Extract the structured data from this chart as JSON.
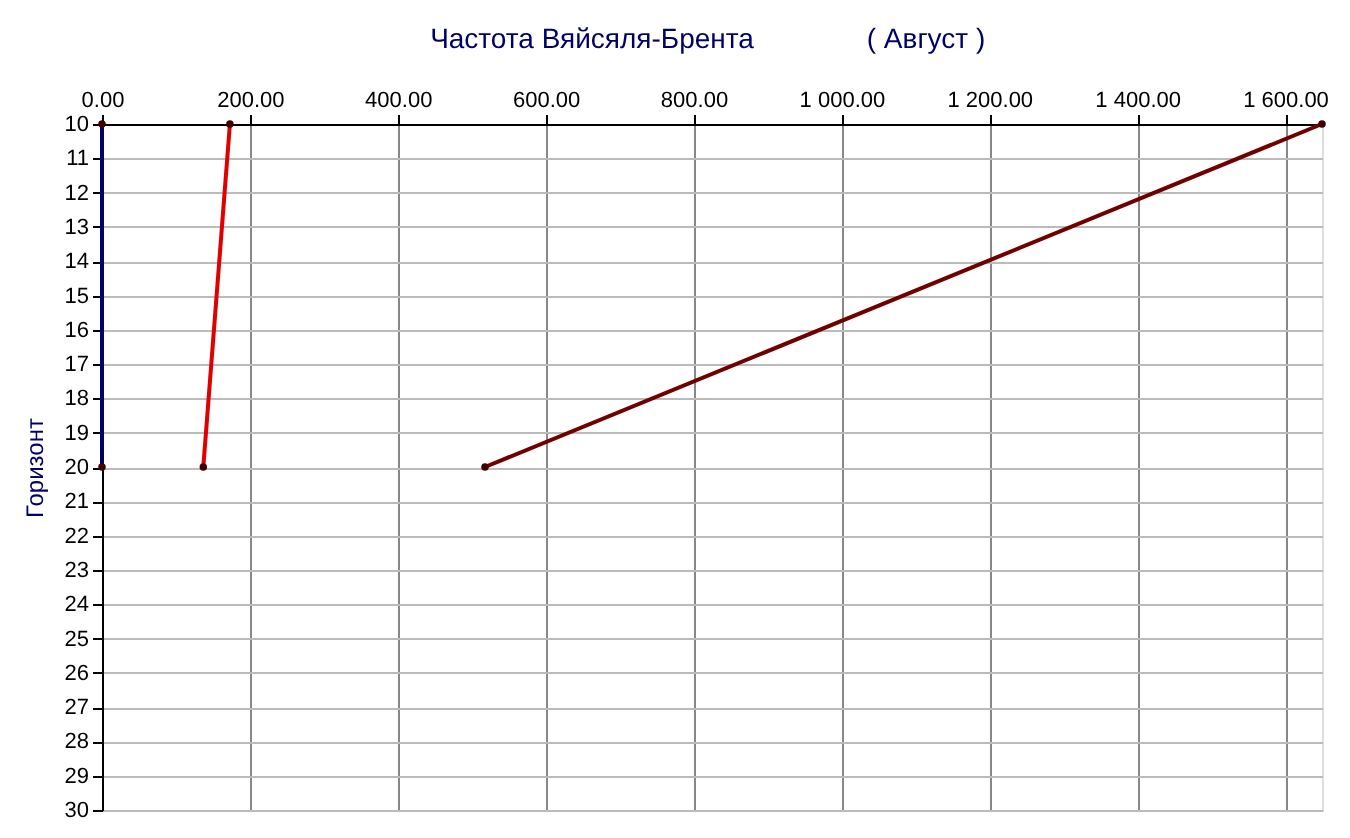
{
  "chart_data": {
    "type": "line",
    "title": "Частота Вяйсяля-Брента",
    "annotations": [
      "( Август )"
    ],
    "ylabel": "Горизонт",
    "series": [
      {
        "color": "#000066",
        "x": [
          0,
          0
        ],
        "values": [
          10,
          20
        ]
      },
      {
        "color": "#e00000",
        "x": [
          173,
          137
        ],
        "values": [
          10,
          20
        ]
      },
      {
        "color": "#700000",
        "x": [
          1650,
          518
        ],
        "values": [
          10,
          20
        ]
      }
    ],
    "xlim": [
      0,
      1650
    ],
    "xticks": [
      {
        "value": 0,
        "label": "0.00"
      },
      {
        "value": 200,
        "label": "200.00"
      },
      {
        "value": 400,
        "label": "400.00"
      },
      {
        "value": 600,
        "label": "600.00"
      },
      {
        "value": 800,
        "label": "800.00"
      },
      {
        "value": 1000,
        "label": "1 000.00"
      },
      {
        "value": 1200,
        "label": "1 200.00"
      },
      {
        "value": 1400,
        "label": "1 400.00"
      },
      {
        "value": 1600,
        "label": "1 600.00"
      }
    ],
    "ylim": [
      30,
      10
    ],
    "yticks": [
      10,
      11,
      12,
      13,
      14,
      15,
      16,
      17,
      18,
      19,
      20,
      21,
      22,
      23,
      24,
      25,
      26,
      27,
      28,
      29,
      30
    ],
    "grid": true,
    "marker": "circle",
    "line_style": "solid"
  }
}
